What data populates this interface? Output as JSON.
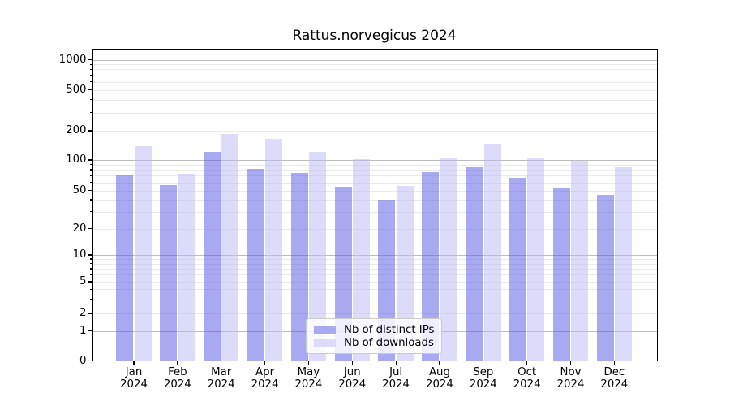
{
  "chart_data": {
    "type": "bar",
    "title": "Rattus.norvegicus 2024",
    "categories": [
      "Jan",
      "Feb",
      "Mar",
      "Apr",
      "May",
      "Jun",
      "Jul",
      "Aug",
      "Sep",
      "Oct",
      "Nov",
      "Dec"
    ],
    "category_year": "2024",
    "series": [
      {
        "name": "Nb of distinct IPs",
        "color": "#a9a9f1",
        "values": [
          72,
          56,
          122,
          81,
          74,
          54,
          40,
          76,
          85,
          66,
          53,
          45
        ]
      },
      {
        "name": "Nb of downloads",
        "color": "#dcdcfa",
        "values": [
          140,
          73,
          185,
          165,
          122,
          102,
          55,
          105,
          148,
          105,
          99,
          85
        ]
      }
    ],
    "xlabel": "",
    "ylabel": "",
    "y_axis": {
      "scale": "symlog",
      "tick_labels": [
        "1000",
        "500",
        "200",
        "100",
        "50",
        "20",
        "10",
        "5",
        "2",
        "1",
        "0"
      ],
      "tick_values": [
        1000,
        500,
        200,
        100,
        50,
        20,
        10,
        5,
        2,
        1,
        0
      ],
      "ylim_top_approx": 1300
    },
    "legend": {
      "position": "bottom-center",
      "labels": [
        "Nb of distinct IPs",
        "Nb of downloads"
      ]
    },
    "grid": true
  }
}
